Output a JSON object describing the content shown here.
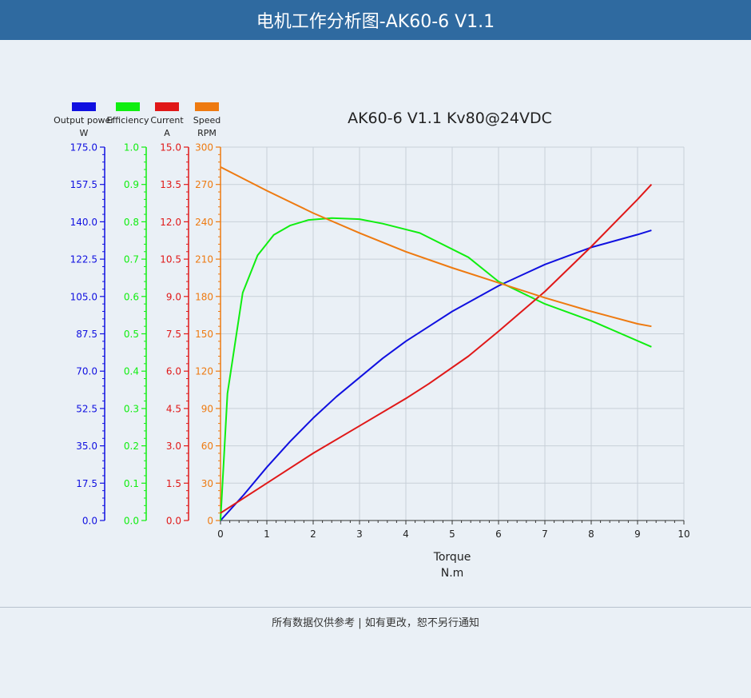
{
  "header": {
    "title": "电机工作分析图-AK60-6 V1.1"
  },
  "footer": {
    "note": "所有数据仅供参考 | 如有更改，恕不另行通知"
  },
  "colors": {
    "header_bg": "#2f6aa0",
    "output_power": "#1010e0",
    "efficiency": "#10ee10",
    "current": "#e01818",
    "speed": "#ee7a10"
  },
  "chart_data": {
    "type": "line",
    "title": "AK60-6 V1.1 Kv80@24VDC",
    "xlabel": "Torque",
    "xunit": "N.m",
    "xlim": [
      0,
      10
    ],
    "xticks": [
      "0",
      "1",
      "2",
      "3",
      "4",
      "5",
      "6",
      "7",
      "8",
      "9",
      "10"
    ],
    "grid": true,
    "legend_position": "top-left",
    "series": [
      {
        "name": "Output power",
        "unit": "W",
        "axis": "power",
        "color": "#1010e0",
        "points": [
          [
            0,
            0
          ],
          [
            0.5,
            12
          ],
          [
            1,
            25
          ],
          [
            1.5,
            37
          ],
          [
            2,
            48
          ],
          [
            2.5,
            58
          ],
          [
            3,
            67
          ],
          [
            3.5,
            76
          ],
          [
            4,
            84
          ],
          [
            4.5,
            91
          ],
          [
            5,
            98
          ],
          [
            5.5,
            104
          ],
          [
            6,
            110
          ],
          [
            6.5,
            115
          ],
          [
            7,
            120
          ],
          [
            7.5,
            124
          ],
          [
            8,
            128
          ],
          [
            8.5,
            131
          ],
          [
            9,
            134
          ],
          [
            9.3,
            136
          ]
        ]
      },
      {
        "name": "Efficiency",
        "unit": "",
        "axis": "efficiency",
        "color": "#10ee10",
        "points": [
          [
            0,
            0
          ],
          [
            0.15,
            0.34
          ],
          [
            0.48,
            0.61
          ],
          [
            0.8,
            0.71
          ],
          [
            1.15,
            0.765
          ],
          [
            1.5,
            0.79
          ],
          [
            1.9,
            0.805
          ],
          [
            2.4,
            0.81
          ],
          [
            3,
            0.807
          ],
          [
            3.5,
            0.795
          ],
          [
            4.3,
            0.77
          ],
          [
            5.35,
            0.705
          ],
          [
            6,
            0.64
          ],
          [
            7,
            0.58
          ],
          [
            8,
            0.535
          ],
          [
            9.3,
            0.465
          ]
        ]
      },
      {
        "name": "Current",
        "unit": "A",
        "axis": "current",
        "color": "#e01818",
        "points": [
          [
            0,
            0.3
          ],
          [
            1,
            1.5
          ],
          [
            2,
            2.7
          ],
          [
            3,
            3.8
          ],
          [
            4,
            4.9
          ],
          [
            4.5,
            5.5
          ],
          [
            5.35,
            6.6
          ],
          [
            6,
            7.6
          ],
          [
            7,
            9.2
          ],
          [
            8,
            11.0
          ],
          [
            9,
            12.9
          ],
          [
            9.3,
            13.5
          ]
        ]
      },
      {
        "name": "Speed",
        "unit": "RPM",
        "axis": "speed",
        "color": "#ee7a10",
        "points": [
          [
            0,
            284
          ],
          [
            1,
            265
          ],
          [
            2,
            247
          ],
          [
            3,
            231
          ],
          [
            4,
            216
          ],
          [
            5,
            203
          ],
          [
            6,
            191
          ],
          [
            7,
            179
          ],
          [
            8,
            168
          ],
          [
            9,
            158
          ],
          [
            9.3,
            156
          ]
        ]
      }
    ],
    "y_axes": [
      {
        "id": "power",
        "label": "Output power",
        "unit": "W",
        "range": [
          0,
          175
        ],
        "ticks": [
          "0.0",
          "17.5",
          "35.0",
          "52.5",
          "70.0",
          "87.5",
          "105.0",
          "122.5",
          "140.0",
          "157.5",
          "175.0"
        ],
        "color": "#1010e0"
      },
      {
        "id": "efficiency",
        "label": "Efficiency",
        "unit": "",
        "range": [
          0,
          1
        ],
        "ticks": [
          "0.0",
          "0.1",
          "0.2",
          "0.3",
          "0.4",
          "0.5",
          "0.6",
          "0.7",
          "0.8",
          "0.9",
          "1.0"
        ],
        "color": "#10ee10"
      },
      {
        "id": "current",
        "label": "Current",
        "unit": "A",
        "range": [
          0,
          15
        ],
        "ticks": [
          "0.0",
          "1.5",
          "3.0",
          "4.5",
          "6.0",
          "7.5",
          "9.0",
          "10.5",
          "12.0",
          "13.5",
          "15.0"
        ],
        "color": "#e01818"
      },
      {
        "id": "speed",
        "label": "Speed",
        "unit": "RPM",
        "range": [
          0,
          300
        ],
        "ticks": [
          "0",
          "30",
          "60",
          "90",
          "120",
          "150",
          "180",
          "210",
          "240",
          "270",
          "300"
        ],
        "color": "#ee7a10"
      }
    ]
  }
}
